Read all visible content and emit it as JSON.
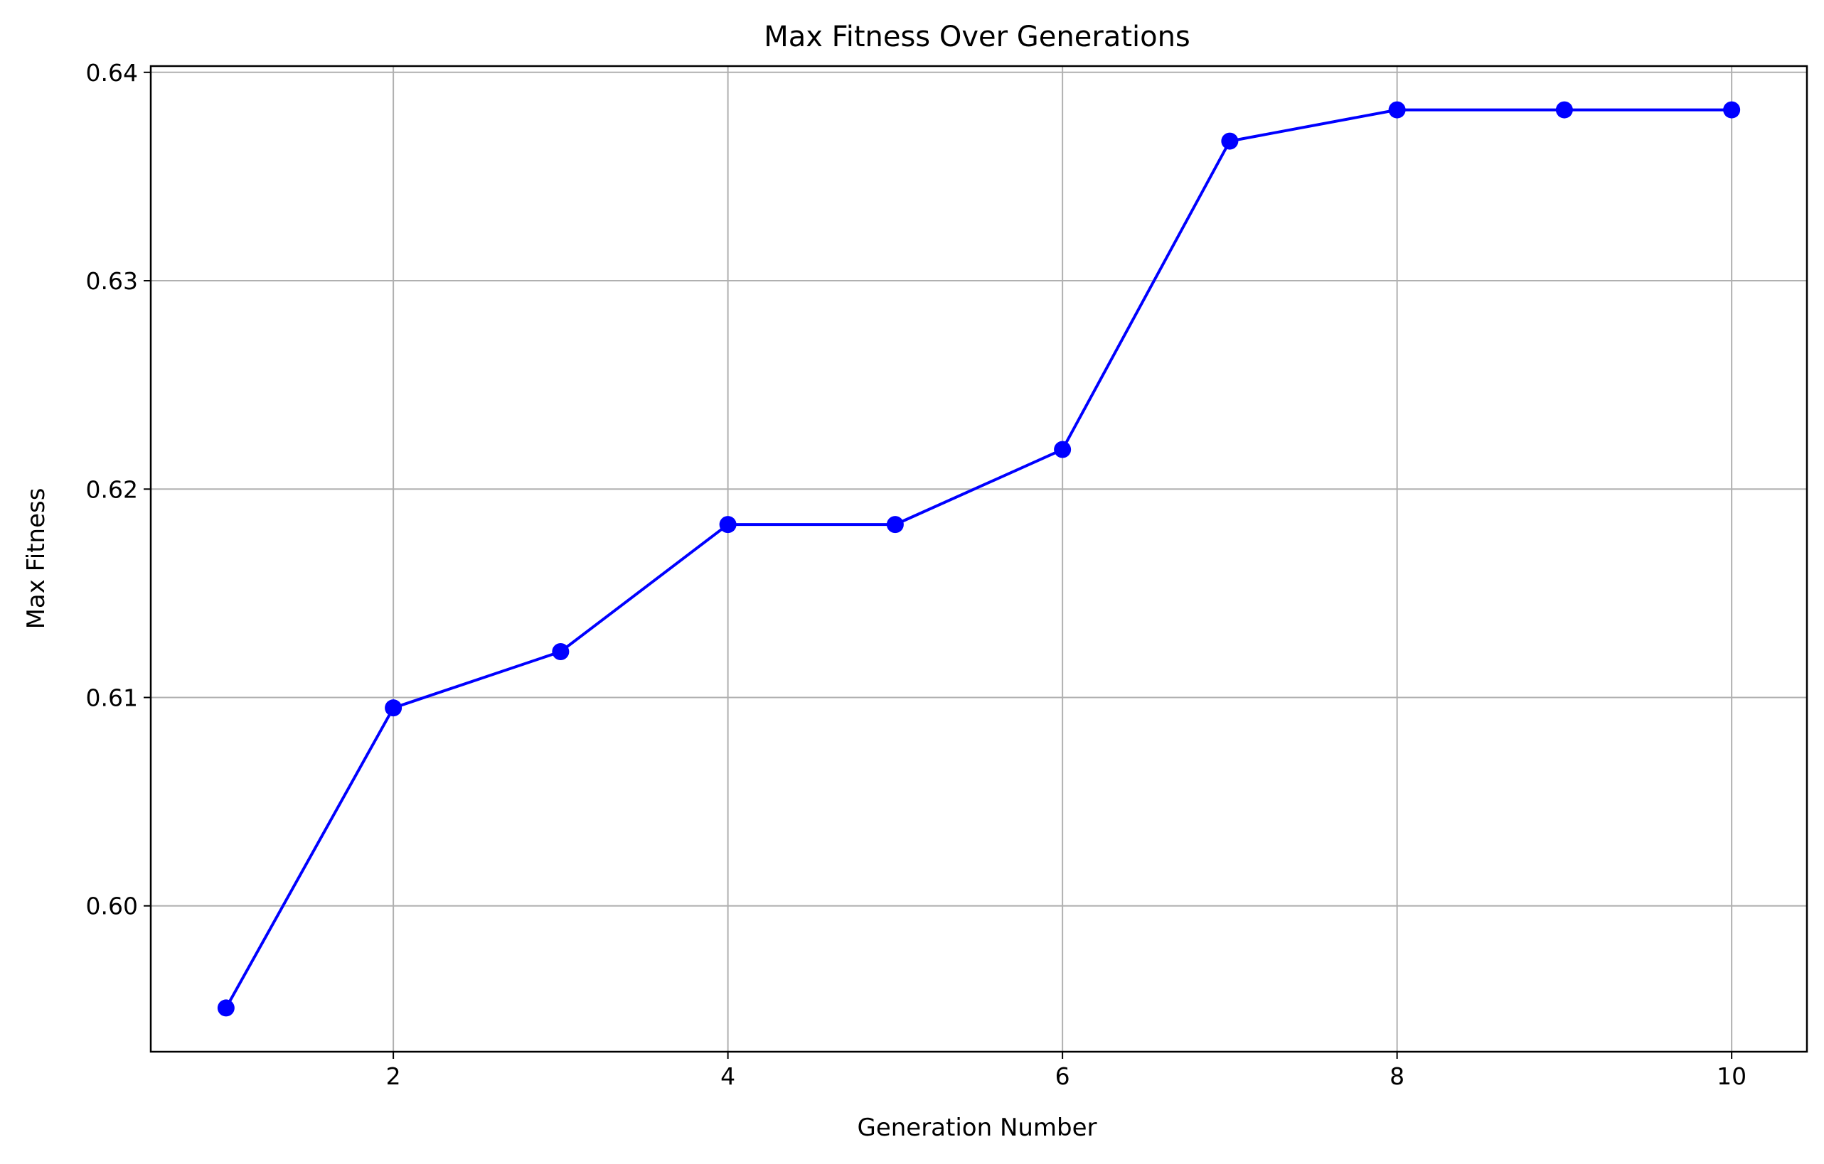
{
  "chart_data": {
    "type": "line",
    "title": "Max Fitness Over Generations",
    "xlabel": "Generation Number",
    "ylabel": "Max Fitness",
    "x": [
      1,
      2,
      3,
      4,
      5,
      6,
      7,
      8,
      9,
      10
    ],
    "series": [
      {
        "values": [
          0.5951,
          0.6095,
          0.6122,
          0.6183,
          0.6183,
          0.6219,
          0.6367,
          0.6382,
          0.6382,
          0.6382
        ],
        "color": "#0000ff",
        "marker": "circle"
      }
    ],
    "xlim": [
      0.55,
      10.45
    ],
    "ylim": [
      0.593,
      0.6403
    ],
    "xticks": [
      2,
      4,
      6,
      8,
      10
    ],
    "xtick_labels": [
      "2",
      "4",
      "6",
      "8",
      "10"
    ],
    "yticks": [
      0.6,
      0.61,
      0.62,
      0.63,
      0.64
    ],
    "ytick_labels": [
      "0.60",
      "0.61",
      "0.62",
      "0.63",
      "0.64"
    ],
    "grid": true
  }
}
